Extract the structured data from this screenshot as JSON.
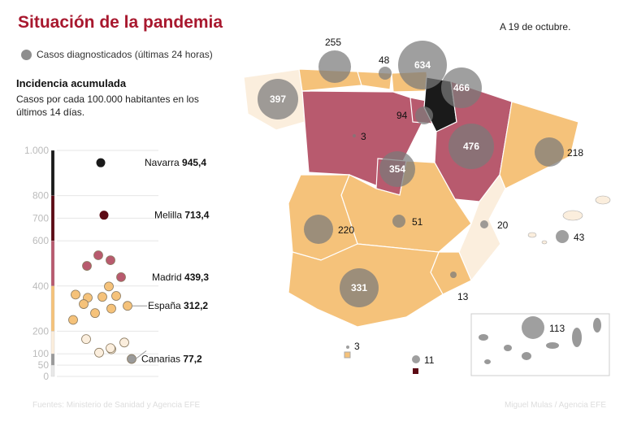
{
  "title": "Situación de la pandemia",
  "date": "A 19 de octubre.",
  "legend": {
    "bubble_label": "Casos diagnosticados (últimas 24 horas)",
    "bubble_color": "#8e8e8e"
  },
  "incidence": {
    "title": "Incidencia acumulada",
    "subtitle": "Casos por cada 100.000 habitantes en los últimos 14 días.",
    "axis_ticks": [
      "1.000",
      "800",
      "700",
      "600",
      "400",
      "200",
      "100",
      "50",
      "0"
    ],
    "scale_colors": {
      "above_800": "#1a1a1a",
      "600_800": "#5c0a14",
      "400_600": "#b85a6e",
      "200_400": "#f5c27a",
      "100_200": "#fbeedd",
      "below_100": "#9a9a9a"
    },
    "labeled": [
      {
        "name": "Navarra",
        "value": "945,4"
      },
      {
        "name": "Melilla",
        "value": "713,4"
      },
      {
        "name": "Madrid",
        "value": "439,3"
      },
      {
        "name": "España",
        "value": "312,2"
      },
      {
        "name": "Canarias",
        "value": "77,2"
      }
    ]
  },
  "chart_data": {
    "type": "scatter",
    "title": "Incidencia acumulada",
    "ylim": [
      0,
      1000
    ],
    "points": [
      945.4,
      713.4,
      536,
      514,
      489,
      439.3,
      398,
      362,
      348,
      352,
      356,
      320,
      312.2,
      300,
      280,
      250,
      165,
      120,
      105,
      125,
      150,
      77.2
    ]
  },
  "map": {
    "region_colors": {
      "black": "#1a1a1a",
      "dark": "#5c0a14",
      "pink": "#b85a6e",
      "orange": "#f5c27a",
      "light": "#fbeedd"
    },
    "bubbles": [
      {
        "region": "Asturias",
        "value": "255"
      },
      {
        "region": "Cantabria",
        "value": "48"
      },
      {
        "region": "País Vasco",
        "value": "634"
      },
      {
        "region": "Navarra",
        "value": "466"
      },
      {
        "region": "Galicia",
        "value": "397"
      },
      {
        "region": "La Rioja",
        "value": "94"
      },
      {
        "region": "Castilla y León",
        "value": "3"
      },
      {
        "region": "Aragón",
        "value": "476"
      },
      {
        "region": "Madrid",
        "value": "354"
      },
      {
        "region": "Cataluña",
        "value": "218"
      },
      {
        "region": "Extremadura",
        "value": "220"
      },
      {
        "region": "Castilla-La Mancha",
        "value": "51"
      },
      {
        "region": "Comunidad Valenciana",
        "value": "20"
      },
      {
        "region": "Baleares",
        "value": "43"
      },
      {
        "region": "Andalucía",
        "value": "331"
      },
      {
        "region": "Murcia",
        "value": "13"
      },
      {
        "region": "Canarias",
        "value": "113"
      },
      {
        "region": "Ceuta",
        "value": "3"
      },
      {
        "region": "Melilla",
        "value": "11"
      }
    ]
  },
  "footer": {
    "source": "Fuentes: Ministerio de Sanidad y Agencia EFE",
    "credit": "Miguel Mulas / Agencia EFE"
  }
}
